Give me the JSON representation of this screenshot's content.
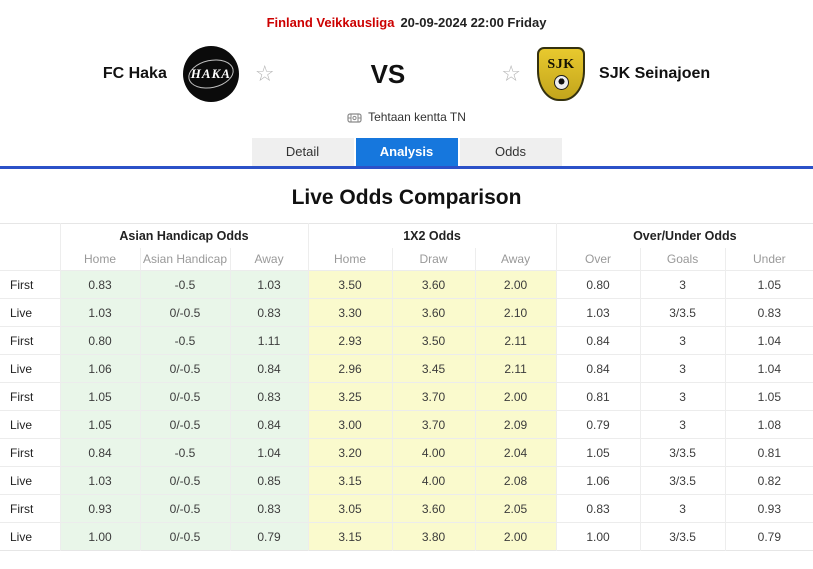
{
  "header": {
    "league": "Finland Veikkausliga",
    "datetime": "20-09-2024 22:00 Friday",
    "home_team": "FC Haka",
    "away_team": "SJK Seinajoen",
    "home_logo_text": "HAKA",
    "away_logo_text": "SJK",
    "vs": "VS",
    "venue": "Tehtaan kentta TN",
    "favorite_icon": "star-outline",
    "venue_icon": "stadium-icon"
  },
  "tabs": [
    {
      "label": "Detail",
      "active": false
    },
    {
      "label": "Analysis",
      "active": true
    },
    {
      "label": "Odds",
      "active": false
    }
  ],
  "section_title": "Live Odds Comparison",
  "table": {
    "groups": [
      {
        "label": "Asian Handicap Odds",
        "columns": [
          "Home",
          "Asian Handicap",
          "Away"
        ]
      },
      {
        "label": "1X2 Odds",
        "columns": [
          "Home",
          "Draw",
          "Away"
        ]
      },
      {
        "label": "Over/Under Odds",
        "columns": [
          "Over",
          "Goals",
          "Under"
        ]
      }
    ],
    "rows": [
      {
        "type": "First",
        "cells": [
          "0.83",
          "-0.5",
          "1.03",
          "3.50",
          "3.60",
          "2.00",
          "0.80",
          "3",
          "1.05"
        ]
      },
      {
        "type": "Live",
        "cells": [
          "1.03",
          "0/-0.5",
          "0.83",
          "3.30",
          "3.60",
          "2.10",
          "1.03",
          "3/3.5",
          "0.83"
        ]
      },
      {
        "type": "First",
        "cells": [
          "0.80",
          "-0.5",
          "1.11",
          "2.93",
          "3.50",
          "2.11",
          "0.84",
          "3",
          "1.04"
        ]
      },
      {
        "type": "Live",
        "cells": [
          "1.06",
          "0/-0.5",
          "0.84",
          "2.96",
          "3.45",
          "2.11",
          "0.84",
          "3",
          "1.04"
        ]
      },
      {
        "type": "First",
        "cells": [
          "1.05",
          "0/-0.5",
          "0.83",
          "3.25",
          "3.70",
          "2.00",
          "0.81",
          "3",
          "1.05"
        ]
      },
      {
        "type": "Live",
        "cells": [
          "1.05",
          "0/-0.5",
          "0.84",
          "3.00",
          "3.70",
          "2.09",
          "0.79",
          "3",
          "1.08"
        ]
      },
      {
        "type": "First",
        "cells": [
          "0.84",
          "-0.5",
          "1.04",
          "3.20",
          "4.00",
          "2.04",
          "1.05",
          "3/3.5",
          "0.81"
        ]
      },
      {
        "type": "Live",
        "cells": [
          "1.03",
          "0/-0.5",
          "0.85",
          "3.15",
          "4.00",
          "2.08",
          "1.06",
          "3/3.5",
          "0.82"
        ]
      },
      {
        "type": "First",
        "cells": [
          "0.93",
          "0/-0.5",
          "0.83",
          "3.05",
          "3.60",
          "2.05",
          "0.83",
          "3",
          "0.93"
        ]
      },
      {
        "type": "Live",
        "cells": [
          "1.00",
          "0/-0.5",
          "0.79",
          "3.15",
          "3.80",
          "2.00",
          "1.00",
          "3/3.5",
          "0.79"
        ]
      }
    ]
  },
  "colors": {
    "league_red": "#cc0000",
    "tab_active_blue": "#1677dd",
    "underline_blue": "#2b51c8",
    "asian_green_bg": "#e9f6e9",
    "x12_yellow_bg": "#fafacd",
    "sjk_gold": "#d9b824"
  }
}
